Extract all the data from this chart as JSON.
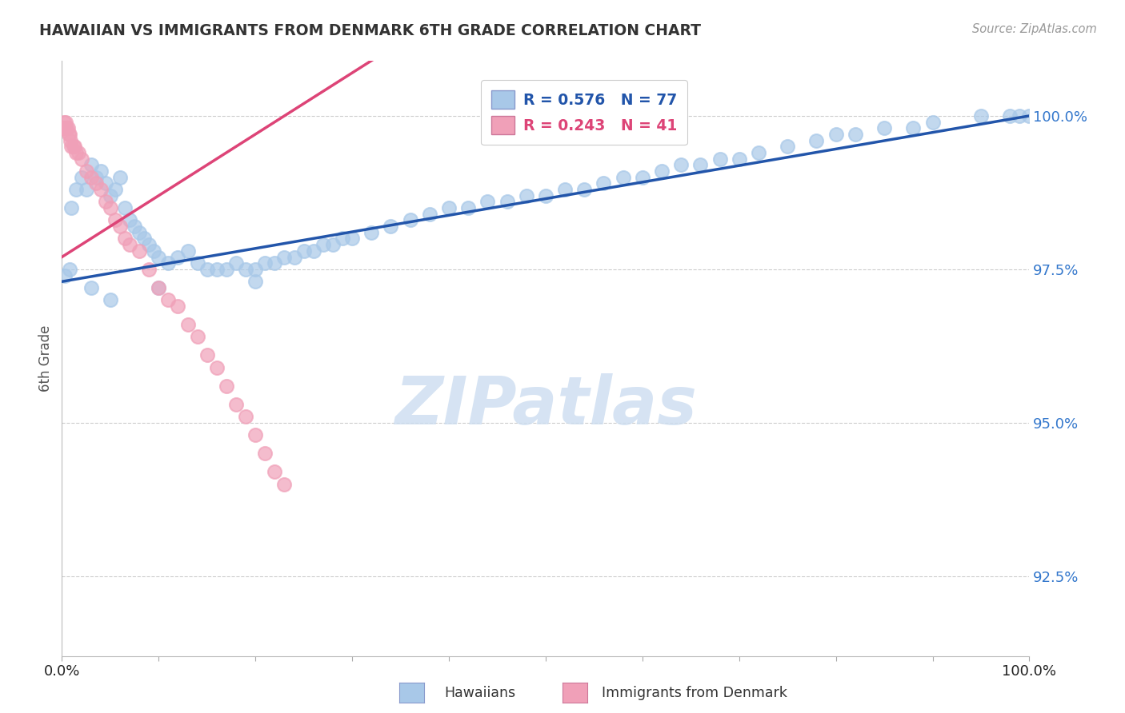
{
  "title": "HAWAIIAN VS IMMIGRANTS FROM DENMARK 6TH GRADE CORRELATION CHART",
  "source_text": "Source: ZipAtlas.com",
  "ylabel": "6th Grade",
  "xmin": 0.0,
  "xmax": 100.0,
  "ymin": 91.2,
  "ymax": 100.9,
  "yticks": [
    92.5,
    95.0,
    97.5,
    100.0
  ],
  "ytick_labels": [
    "92.5%",
    "95.0%",
    "97.5%",
    "100.0%"
  ],
  "xtick_positions": [
    0,
    10,
    20,
    30,
    40,
    50,
    60,
    70,
    80,
    90,
    100
  ],
  "xtick_labels_show": [
    "0.0%",
    "",
    "",
    "",
    "",
    "",
    "",
    "",
    "",
    "",
    "100.0%"
  ],
  "r_blue": "0.576",
  "n_blue": "77",
  "r_pink": "0.243",
  "n_pink": "41",
  "blue_scatter_color": "#a8c8e8",
  "pink_scatter_color": "#f0a0b8",
  "blue_line_color": "#2255aa",
  "pink_line_color": "#dd4477",
  "watermark_text": "ZIPatlas",
  "watermark_color": "#ccddf0",
  "label_hawaiians": "Hawaiians",
  "label_denmark": "Immigrants from Denmark",
  "blue_x": [
    0.3,
    0.8,
    1.0,
    1.5,
    2.0,
    2.5,
    3.0,
    3.5,
    4.0,
    4.5,
    5.0,
    5.5,
    6.0,
    6.5,
    7.0,
    7.5,
    8.0,
    8.5,
    9.0,
    9.5,
    10.0,
    11.0,
    12.0,
    13.0,
    14.0,
    15.0,
    16.0,
    17.0,
    18.0,
    19.0,
    20.0,
    21.0,
    22.0,
    23.0,
    24.0,
    25.0,
    26.0,
    27.0,
    28.0,
    29.0,
    30.0,
    32.0,
    34.0,
    36.0,
    38.0,
    40.0,
    42.0,
    44.0,
    46.0,
    48.0,
    50.0,
    52.0,
    54.0,
    56.0,
    58.0,
    60.0,
    62.0,
    64.0,
    66.0,
    68.0,
    70.0,
    72.0,
    75.0,
    78.0,
    80.0,
    82.0,
    85.0,
    88.0,
    90.0,
    95.0,
    98.0,
    99.0,
    100.0,
    3.0,
    5.0,
    10.0,
    20.0
  ],
  "blue_y": [
    97.4,
    97.5,
    98.5,
    98.8,
    99.0,
    98.8,
    99.2,
    99.0,
    99.1,
    98.9,
    98.7,
    98.8,
    99.0,
    98.5,
    98.3,
    98.2,
    98.1,
    98.0,
    97.9,
    97.8,
    97.7,
    97.6,
    97.7,
    97.8,
    97.6,
    97.5,
    97.5,
    97.5,
    97.6,
    97.5,
    97.5,
    97.6,
    97.6,
    97.7,
    97.7,
    97.8,
    97.8,
    97.9,
    97.9,
    98.0,
    98.0,
    98.1,
    98.2,
    98.3,
    98.4,
    98.5,
    98.5,
    98.6,
    98.6,
    98.7,
    98.7,
    98.8,
    98.8,
    98.9,
    99.0,
    99.0,
    99.1,
    99.2,
    99.2,
    99.3,
    99.3,
    99.4,
    99.5,
    99.6,
    99.7,
    99.7,
    99.8,
    99.8,
    99.9,
    100.0,
    100.0,
    100.0,
    100.0,
    97.2,
    97.0,
    97.2,
    97.3
  ],
  "pink_x": [
    0.1,
    0.2,
    0.3,
    0.4,
    0.5,
    0.6,
    0.7,
    0.8,
    0.9,
    1.0,
    1.2,
    1.3,
    1.5,
    1.7,
    2.0,
    2.5,
    3.0,
    3.5,
    4.0,
    4.5,
    5.0,
    5.5,
    6.0,
    6.5,
    7.0,
    8.0,
    9.0,
    10.0,
    11.0,
    12.0,
    13.0,
    14.0,
    15.0,
    16.0,
    17.0,
    18.0,
    19.0,
    20.0,
    21.0,
    22.0,
    23.0
  ],
  "pink_y": [
    99.8,
    99.9,
    99.8,
    99.9,
    99.8,
    99.8,
    99.7,
    99.7,
    99.6,
    99.5,
    99.5,
    99.5,
    99.4,
    99.4,
    99.3,
    99.1,
    99.0,
    98.9,
    98.8,
    98.6,
    98.5,
    98.3,
    98.2,
    98.0,
    97.9,
    97.8,
    97.5,
    97.2,
    97.0,
    96.9,
    96.6,
    96.4,
    96.1,
    95.9,
    95.6,
    95.3,
    95.1,
    94.8,
    94.5,
    94.2,
    94.0
  ]
}
